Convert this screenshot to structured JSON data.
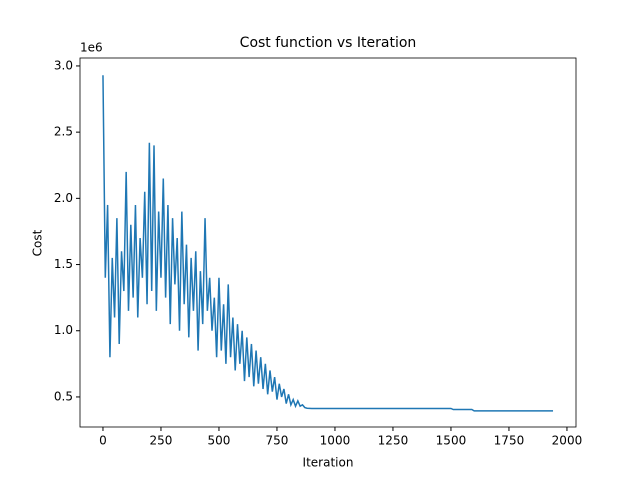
{
  "chart_data": {
    "type": "line",
    "title": "Cost function vs Iteration",
    "x_label": "Iteration",
    "y_label": "Cost",
    "y_offset_label": "1e6",
    "x": [
      0,
      10,
      20,
      30,
      40,
      50,
      60,
      70,
      80,
      90,
      100,
      110,
      120,
      130,
      140,
      150,
      160,
      170,
      180,
      190,
      200,
      210,
      220,
      230,
      240,
      250,
      260,
      270,
      280,
      290,
      300,
      310,
      320,
      330,
      340,
      350,
      360,
      370,
      380,
      390,
      400,
      410,
      420,
      430,
      440,
      450,
      460,
      470,
      480,
      490,
      500,
      510,
      520,
      530,
      540,
      550,
      560,
      570,
      580,
      590,
      600,
      610,
      620,
      630,
      640,
      650,
      660,
      670,
      680,
      690,
      700,
      710,
      720,
      730,
      740,
      750,
      760,
      770,
      780,
      790,
      800,
      810,
      820,
      830,
      840,
      850,
      860,
      870,
      880,
      900,
      1000,
      1500,
      1510,
      1590,
      1600,
      1940
    ],
    "series": [
      {
        "name": "Cost",
        "color": "#1f77b4",
        "values": [
          2930000,
          1400000,
          1950000,
          800000,
          1550000,
          1100000,
          1850000,
          900000,
          1600000,
          1300000,
          2200000,
          1150000,
          1800000,
          1250000,
          1950000,
          1100000,
          1700000,
          1400000,
          2050000,
          1200000,
          2420000,
          1300000,
          2400000,
          1150000,
          1900000,
          1400000,
          2150000,
          1250000,
          1950000,
          1050000,
          1850000,
          1350000,
          1700000,
          1000000,
          1900000,
          1200000,
          1650000,
          950000,
          1550000,
          1150000,
          1600000,
          850000,
          1450000,
          1050000,
          1850000,
          1150000,
          1400000,
          1000000,
          1250000,
          800000,
          1400000,
          850000,
          1200000,
          750000,
          1350000,
          800000,
          1100000,
          700000,
          1050000,
          750000,
          1000000,
          620000,
          950000,
          650000,
          900000,
          580000,
          850000,
          600000,
          800000,
          560000,
          750000,
          520000,
          700000,
          540000,
          650000,
          480000,
          600000,
          500000,
          560000,
          450000,
          520000,
          440000,
          480000,
          430000,
          470000,
          430000,
          440000,
          420000,
          415000,
          413000,
          413000,
          413000,
          405000,
          405000,
          395000,
          395000
        ]
      }
    ],
    "xlim": [
      -99,
      2039
    ],
    "ylim": [
      273000,
      3060000
    ],
    "xticks": [
      0,
      250,
      500,
      750,
      1000,
      1250,
      1500,
      1750,
      2000
    ],
    "yticks": [
      {
        "value": 500000,
        "label": "0.5"
      },
      {
        "value": 1000000,
        "label": "1.0"
      },
      {
        "value": 1500000,
        "label": "1.5"
      },
      {
        "value": 2000000,
        "label": "2.0"
      },
      {
        "value": 2500000,
        "label": "2.5"
      },
      {
        "value": 3000000,
        "label": "3.0"
      }
    ]
  }
}
